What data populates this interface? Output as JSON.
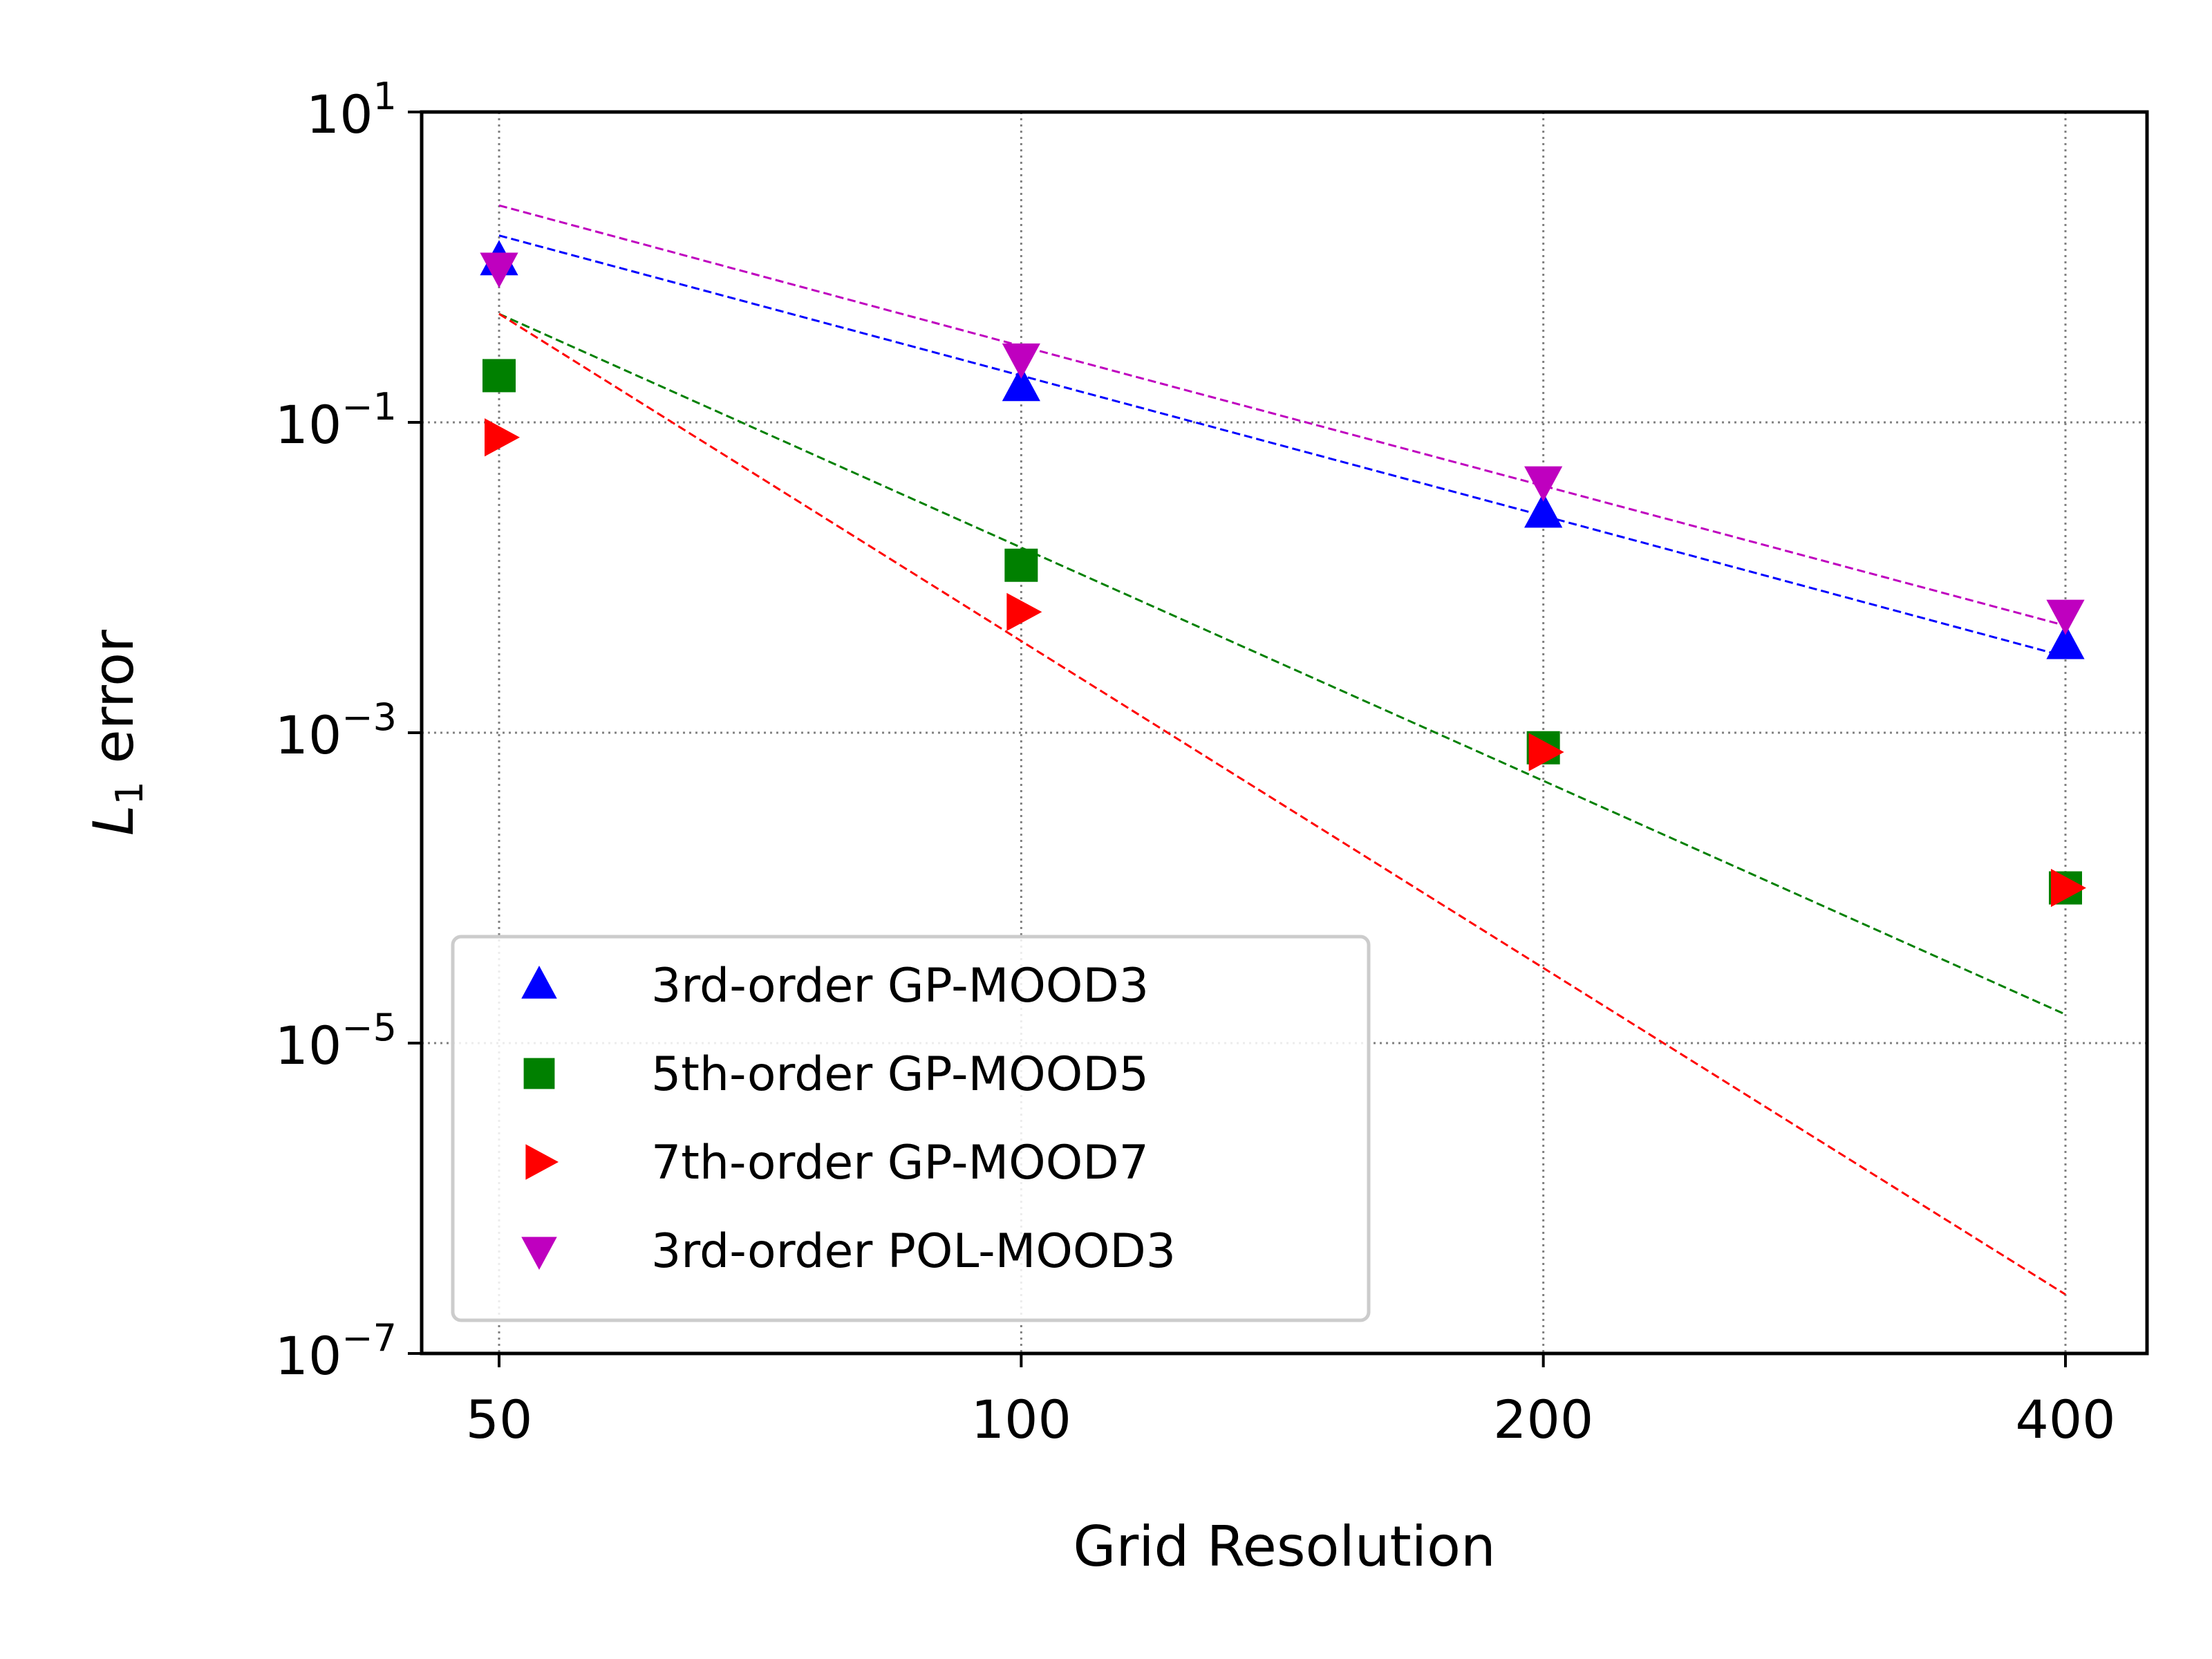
{
  "chart_data": {
    "type": "scatter",
    "xscale": "log2",
    "yscale": "log10",
    "x": [
      50,
      100,
      200,
      400
    ],
    "xlim": [
      50,
      400
    ],
    "ylim": [
      1e-07,
      10
    ],
    "xlabel": "Grid Resolution",
    "ylabel_main": "L",
    "ylabel_sub": "1",
    "ylabel_rest": " error",
    "xticks": [
      {
        "value": 50,
        "label": "50"
      },
      {
        "value": 100,
        "label": "100"
      },
      {
        "value": 200,
        "label": "200"
      },
      {
        "value": 400,
        "label": "400"
      }
    ],
    "yticks": [
      {
        "value": 10,
        "base": "10",
        "exp": "1"
      },
      {
        "value": 0.1,
        "base": "10",
        "exp": "−1"
      },
      {
        "value": 0.001,
        "base": "10",
        "exp": "−3"
      },
      {
        "value": 1e-05,
        "base": "10",
        "exp": "−5"
      },
      {
        "value": 1e-07,
        "base": "10",
        "exp": "−7"
      }
    ],
    "grid": true,
    "legend_position": "lower-left",
    "series": [
      {
        "name": "3rd-order GP-MOOD3",
        "color": "#0000ff",
        "marker": "triangle-up",
        "values": [
          1.1,
          0.17,
          0.026,
          0.0037
        ],
        "fit": [
          1.6,
          0.2,
          0.025,
          0.0031
        ]
      },
      {
        "name": "5th-order GP-MOOD5",
        "color": "#008000",
        "marker": "square",
        "values": [
          0.2,
          0.012,
          0.0008,
          0.0001
        ],
        "fit": [
          0.5,
          0.0156,
          0.00049,
          1.53e-05
        ]
      },
      {
        "name": "7th-order GP-MOOD7",
        "color": "#ff0000",
        "marker": "triangle-right",
        "values": [
          0.08,
          0.006,
          0.00075,
          0.0001
        ],
        "fit": [
          0.5,
          0.0039,
          3.05e-05,
          2.4e-07
        ]
      },
      {
        "name": "3rd-order POL-MOOD3",
        "color": "#bf00bf",
        "marker": "triangle-down",
        "values": [
          1.0,
          0.26,
          0.042,
          0.0058
        ],
        "fit": [
          2.5,
          0.31,
          0.039,
          0.0049
        ]
      }
    ]
  }
}
